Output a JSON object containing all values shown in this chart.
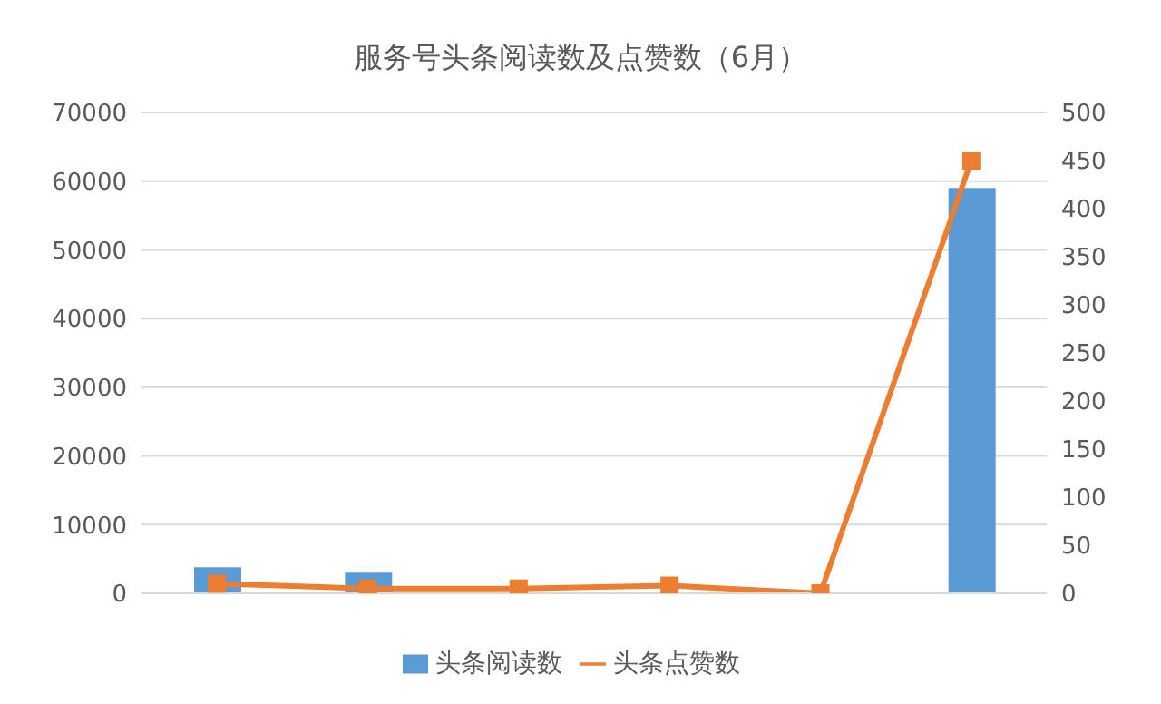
{
  "chart_data": {
    "type": "bar",
    "title": "服务号头条阅读数及点赞数（6月）",
    "categories": [
      null,
      null,
      null,
      null,
      null,
      null
    ],
    "series": [
      {
        "name": "头条阅读数",
        "color": "#5b9bd5",
        "values": [
          3800,
          3000,
          null,
          null,
          0,
          59000
        ]
      },
      {
        "name": "头条点赞数",
        "type": "line",
        "axis": "y2",
        "color": "#ed7d31",
        "marker": "square",
        "values": [
          10,
          5,
          5,
          8,
          0,
          450
        ]
      }
    ],
    "ylim": [
      0,
      70000
    ],
    "yticks": [
      0,
      10000,
      20000,
      30000,
      40000,
      50000,
      60000,
      70000
    ],
    "y2lim": [
      0,
      500
    ],
    "y2ticks": [
      0,
      50,
      100,
      150,
      200,
      250,
      300,
      350,
      400,
      450,
      500
    ],
    "grid": "y",
    "legend": "bottom"
  }
}
